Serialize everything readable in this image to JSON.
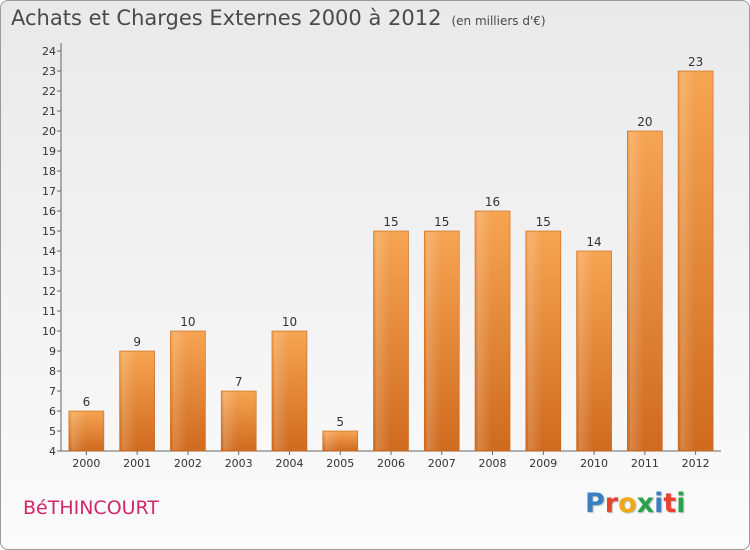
{
  "header": {
    "title": "Achats et Charges Externes 2000 à 2012",
    "subtitle": "(en milliers d'€)"
  },
  "footer": {
    "commune": "BéTHINCOURT",
    "logo_letters": [
      "P",
      "r",
      "o",
      "x",
      "i",
      "t",
      "i"
    ],
    "logo_colors": [
      "#3a7fc1",
      "#e8442d",
      "#f2a71b",
      "#2aa24a",
      "#3a7fc1",
      "#e8442d",
      "#2aa24a"
    ]
  },
  "chart_data": {
    "type": "bar",
    "categories": [
      "2000",
      "2001",
      "2002",
      "2003",
      "2004",
      "2005",
      "2006",
      "2007",
      "2008",
      "2009",
      "2010",
      "2011",
      "2012"
    ],
    "values": [
      6,
      9,
      10,
      7,
      10,
      5,
      15,
      15,
      16,
      15,
      14,
      20,
      23
    ],
    "ylim": [
      4,
      24
    ],
    "yticks": [
      4,
      5,
      6,
      7,
      8,
      9,
      10,
      11,
      12,
      13,
      14,
      15,
      16,
      17,
      18,
      19,
      20,
      21,
      22,
      23,
      24
    ],
    "grid": false,
    "bar_color": "#f19a3e",
    "bar_color_dark": "#d0681c"
  }
}
